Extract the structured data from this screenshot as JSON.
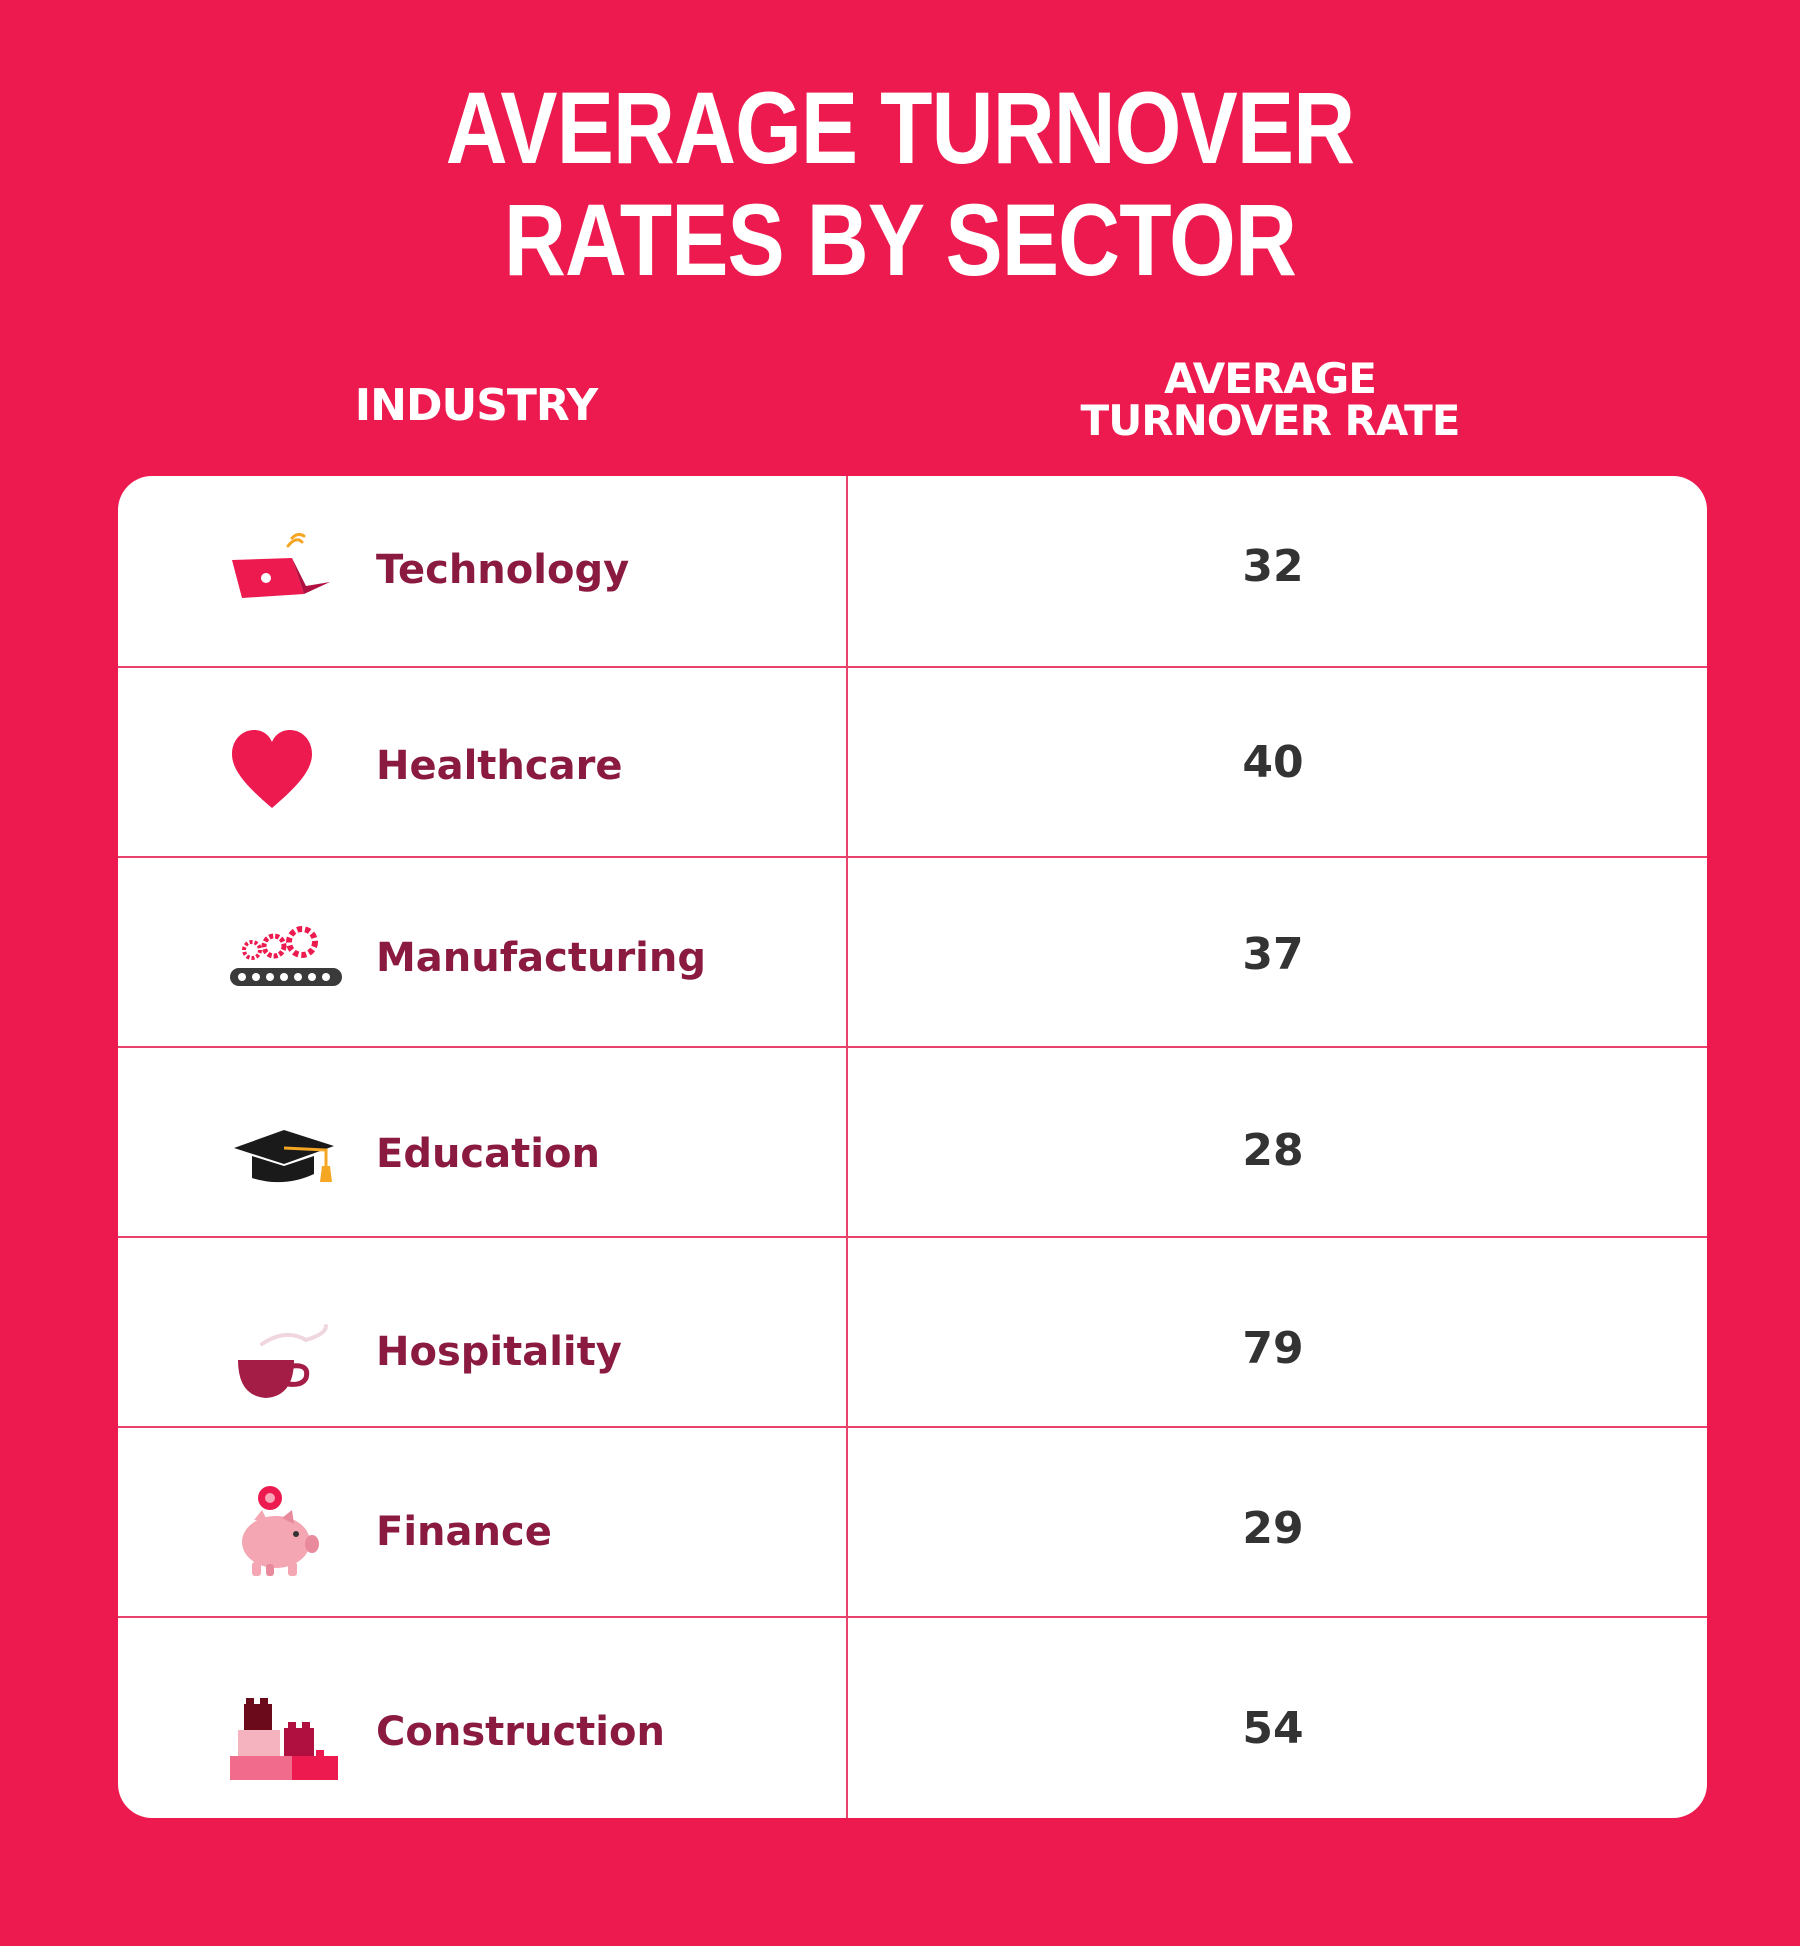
{
  "title": {
    "line1": "AVERAGE TURNOVER",
    "line2": "RATES BY SECTOR"
  },
  "headers": {
    "industry": "INDUSTRY",
    "rate_line1": "AVERAGE",
    "rate_line2": "TURNOVER RATE"
  },
  "chart_data": {
    "type": "table",
    "title": "AVERAGE TURNOVER RATES BY SECTOR",
    "columns": [
      "INDUSTRY",
      "AVERAGE TURNOVER RATE"
    ],
    "rows": [
      {
        "industry": "Technology",
        "rate": 32,
        "rate_label": "32",
        "icon": "laptop-icon"
      },
      {
        "industry": "Healthcare",
        "rate": 40,
        "rate_label": "40",
        "icon": "heart-icon"
      },
      {
        "industry": "Manufacturing",
        "rate": 37,
        "rate_label": "37",
        "icon": "conveyor-gears-icon"
      },
      {
        "industry": "Education",
        "rate": 28,
        "rate_label": "28",
        "icon": "graduation-cap-icon"
      },
      {
        "industry": "Hospitality",
        "rate": 79,
        "rate_label": "79",
        "icon": "coffee-cup-icon"
      },
      {
        "industry": "Finance",
        "rate": 29,
        "rate_label": "29",
        "icon": "piggy-bank-icon"
      },
      {
        "industry": "Construction",
        "rate": 54,
        "rate_label": "54",
        "icon": "building-blocks-icon"
      }
    ]
  },
  "colors": {
    "background": "#ed1a4f",
    "label": "#8a1a3f",
    "value": "#333333",
    "divider": "#e8416b"
  }
}
